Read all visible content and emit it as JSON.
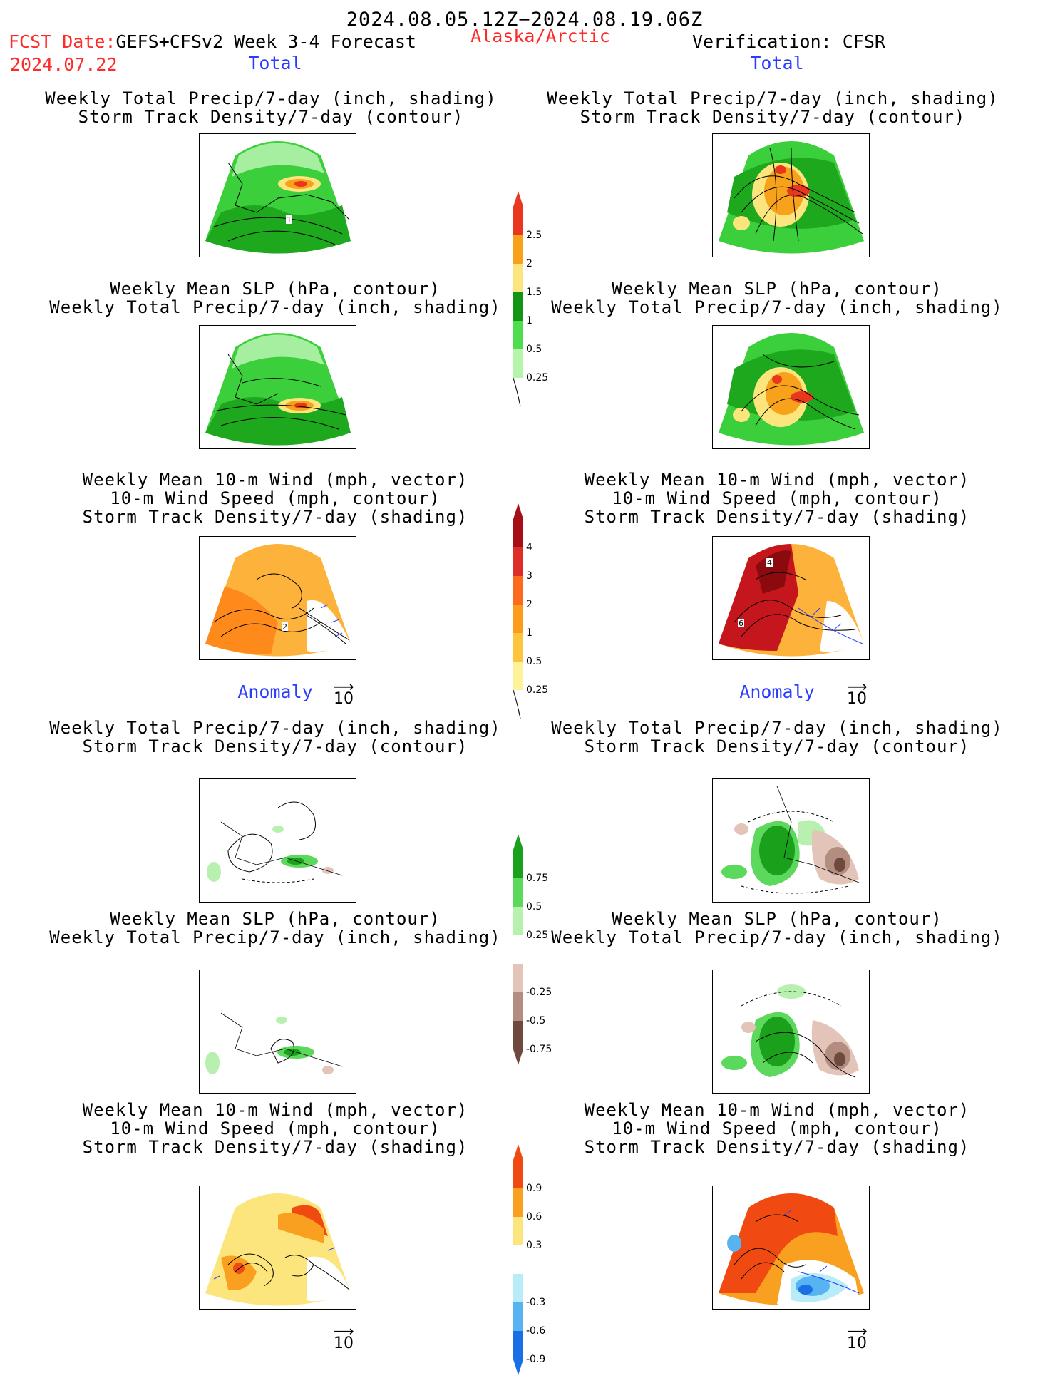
{
  "header": {
    "period": "2024.08.05.12Z−2024.08.19.06Z",
    "fcst_label": "FCST Date:",
    "fcst_date": "2024.07.22",
    "model": "GEFS+CFSv2 Week 3-4 Forecast",
    "region": "Alaska/Arctic",
    "verification": "Verification: CFSR"
  },
  "sections": {
    "total": "Total",
    "anomaly": "Anomaly"
  },
  "titles": {
    "precip_storm": "Weekly Total Precip/7-day (inch, shading)\nStorm Track Density/7-day (contour)",
    "slp_precip": "Weekly Mean SLP (hPa, contour)\nWeekly Total Precip/7-day (inch, shading)",
    "wind_storm": "Weekly Mean 10-m Wind (mph, vector)\n10-m Wind Speed (mph, contour)\nStorm Track Density/7-day (shading)"
  },
  "contour_labels": {
    "fc_total_precip": "1",
    "fc_total_wind": "2",
    "ob_total_wind_a": "4",
    "ob_total_wind_b": "6"
  },
  "vector_ref": "10",
  "colorbars": {
    "total_precip": {
      "labels": [
        "2.5",
        "2",
        "1.5",
        "1",
        "0.5",
        "0.25"
      ],
      "colors": [
        "#e8371e",
        "#f7a21a",
        "#fde57e",
        "#149414",
        "#4fdc4f",
        "#b4f5aa"
      ]
    },
    "total_storm": {
      "labels": [
        "4",
        "3",
        "2",
        "1",
        "0.5",
        "0.25"
      ],
      "colors": [
        "#a50f15",
        "#de2d26",
        "#fc6a1e",
        "#fd9b1a",
        "#fdc43c",
        "#fef29a"
      ]
    },
    "anom_precip": {
      "labels": [
        "0.75",
        "0.5",
        "0.25",
        "-0.25",
        "-0.5",
        "-0.75"
      ],
      "colors": [
        "#1aa01a",
        "#5cd85c",
        "#b8f0b0",
        "#ffffff",
        "#e3c4b8",
        "#b38d80",
        "#6e4a3e"
      ]
    },
    "anom_storm": {
      "labels": [
        "0.9",
        "0.6",
        "0.3",
        "-0.3",
        "-0.6",
        "-0.9"
      ],
      "colors": [
        "#f04a12",
        "#f9a020",
        "#fde57e",
        "#ffffff",
        "#b8ecf8",
        "#58b4f0",
        "#1a6ee6"
      ]
    }
  },
  "colors": {
    "red_text": "#ff2a2a",
    "blue_text": "#2a3cff"
  }
}
